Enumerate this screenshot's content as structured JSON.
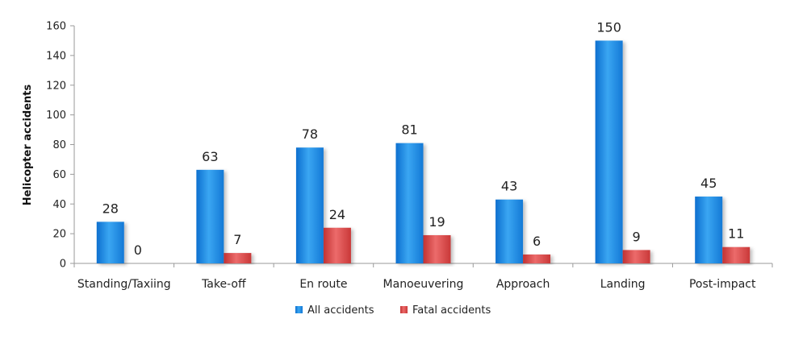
{
  "chart_data": {
    "type": "bar",
    "ylabel": "Helicopter accidents",
    "xlabel": "",
    "ylim": [
      0,
      160
    ],
    "yticks": [
      0,
      20,
      40,
      60,
      80,
      100,
      120,
      140,
      160
    ],
    "categories": [
      "Standing/Taxiing",
      "Take-off",
      "En route",
      "Manoeuvering",
      "Approach",
      "Landing",
      "Post-impact"
    ],
    "series": [
      {
        "name": "All accidents",
        "values": [
          28,
          63,
          78,
          81,
          43,
          150,
          45
        ],
        "color": "#1e88e5"
      },
      {
        "name": "Fatal accidents",
        "values": [
          0,
          7,
          24,
          19,
          6,
          9,
          11
        ],
        "color": "#d94a4a"
      }
    ],
    "legend_position": "bottom",
    "grid": false
  }
}
